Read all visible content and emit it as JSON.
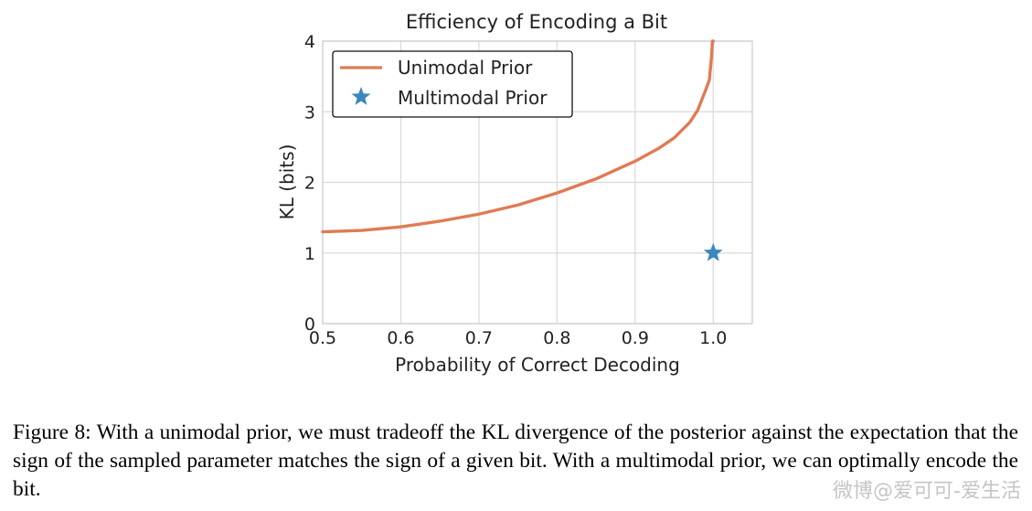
{
  "chart_data": {
    "type": "line",
    "title": "Efficiency of Encoding a Bit",
    "xlabel": "Probability of Correct Decoding",
    "ylabel": "KL (bits)",
    "xlim": [
      0.5,
      1.05
    ],
    "ylim": [
      0,
      4
    ],
    "xticks": [
      "0.5",
      "0.6",
      "0.7",
      "0.8",
      "0.9",
      "1.0"
    ],
    "yticks": [
      "0",
      "1",
      "2",
      "3",
      "4"
    ],
    "grid": true,
    "legend_placement": "top-left",
    "series": [
      {
        "name": "Unimodal Prior",
        "kind": "line",
        "color": "#e07b54",
        "x": [
          0.5,
          0.55,
          0.6,
          0.65,
          0.7,
          0.75,
          0.8,
          0.85,
          0.9,
          0.93,
          0.95,
          0.97,
          0.98,
          0.99,
          0.995,
          0.998,
          0.999,
          1.0
        ],
        "y": [
          1.3,
          1.32,
          1.37,
          1.45,
          1.55,
          1.68,
          1.85,
          2.05,
          2.3,
          2.48,
          2.63,
          2.85,
          3.02,
          3.3,
          3.45,
          3.8,
          4.0,
          4.05
        ]
      },
      {
        "name": "Multimodal Prior",
        "kind": "scatter",
        "marker": "star",
        "color": "#3a88bd",
        "x": [
          1.0
        ],
        "y": [
          1.0
        ]
      }
    ]
  },
  "caption": "Figure 8: With a unimodal prior, we must tradeoff the KL divergence of the posterior against the expectation that the sign of the sampled parameter matches the sign of a given bit. With a multimodal prior, we can optimally encode the bit.",
  "watermark": "微博@爱可可-爱生活"
}
